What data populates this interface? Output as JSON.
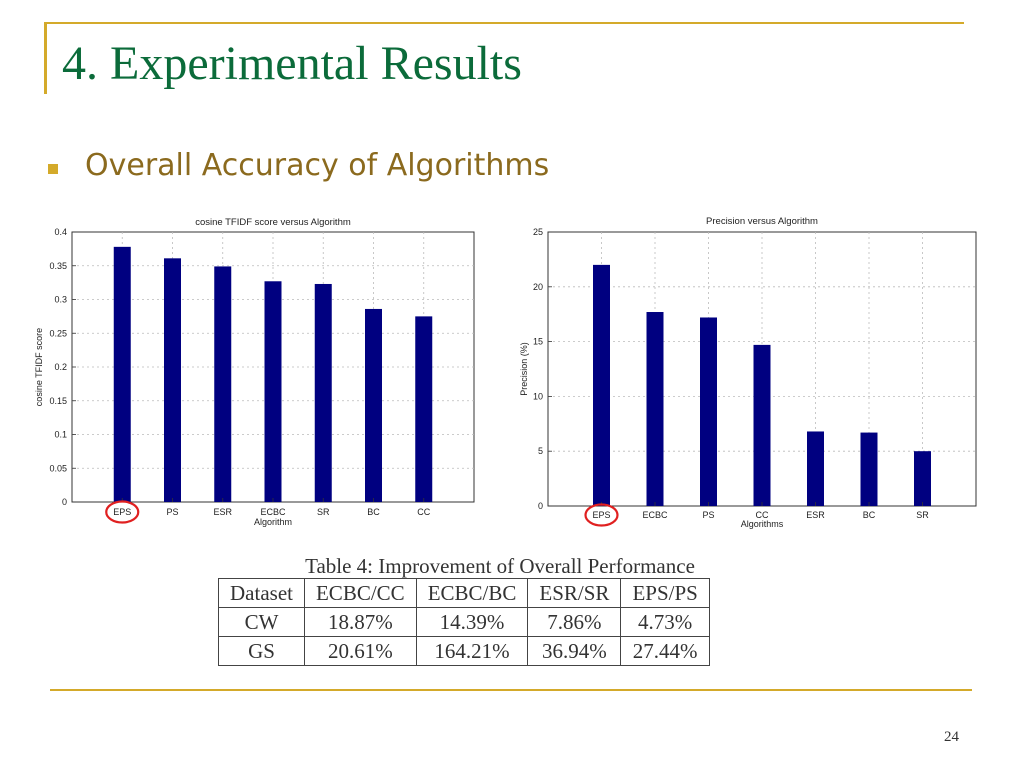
{
  "slide": {
    "title": "4. Experimental Results",
    "bullet": "Overall Accuracy of Algorithms",
    "page_number": "24"
  },
  "colors": {
    "bar": "#000080",
    "highlight_circle": "#E02020",
    "title": "#0B6B3A",
    "accent": "#D4AA2A",
    "bullet_text": "#8B6A1E"
  },
  "chart_data": [
    {
      "type": "bar",
      "title": "cosine TFIDF score versus Algorithm",
      "xlabel": "Algorithm",
      "ylabel": "cosine TFIDF score",
      "categories": [
        "EPS",
        "PS",
        "ESR",
        "ECBC",
        "SR",
        "BC",
        "CC"
      ],
      "values": [
        0.378,
        0.361,
        0.349,
        0.327,
        0.323,
        0.286,
        0.275
      ],
      "ylim": [
        0,
        0.4
      ],
      "yticks": [
        0,
        0.05,
        0.1,
        0.15,
        0.2,
        0.25,
        0.3,
        0.35,
        0.4
      ],
      "ytick_labels": [
        "0",
        "0.05",
        "0.1",
        "0.15",
        "0.2",
        "0.25",
        "0.3",
        "0.35",
        "0.4"
      ],
      "grid": true,
      "highlighted_category": "EPS"
    },
    {
      "type": "bar",
      "title": "Precision versus Algorithm",
      "xlabel": "Algorithms",
      "ylabel": "Precision (%)",
      "categories": [
        "EPS",
        "ECBC",
        "PS",
        "CC",
        "ESR",
        "BC",
        "SR"
      ],
      "values": [
        22.0,
        17.7,
        17.2,
        14.7,
        6.8,
        6.7,
        5.0
      ],
      "ylim": [
        0,
        25
      ],
      "yticks": [
        0,
        5,
        10,
        15,
        20,
        25
      ],
      "ytick_labels": [
        "0",
        "5",
        "10",
        "15",
        "20",
        "25"
      ],
      "grid": true,
      "highlighted_category": "EPS"
    }
  ],
  "table": {
    "caption": "Table 4: Improvement of Overall Performance",
    "headers": [
      "Dataset",
      "ECBC/CC",
      "ECBC/BC",
      "ESR/SR",
      "EPS/PS"
    ],
    "rows": [
      [
        "CW",
        "18.87%",
        "14.39%",
        "7.86%",
        "4.73%"
      ],
      [
        "GS",
        "20.61%",
        "164.21%",
        "36.94%",
        "27.44%"
      ]
    ]
  }
}
